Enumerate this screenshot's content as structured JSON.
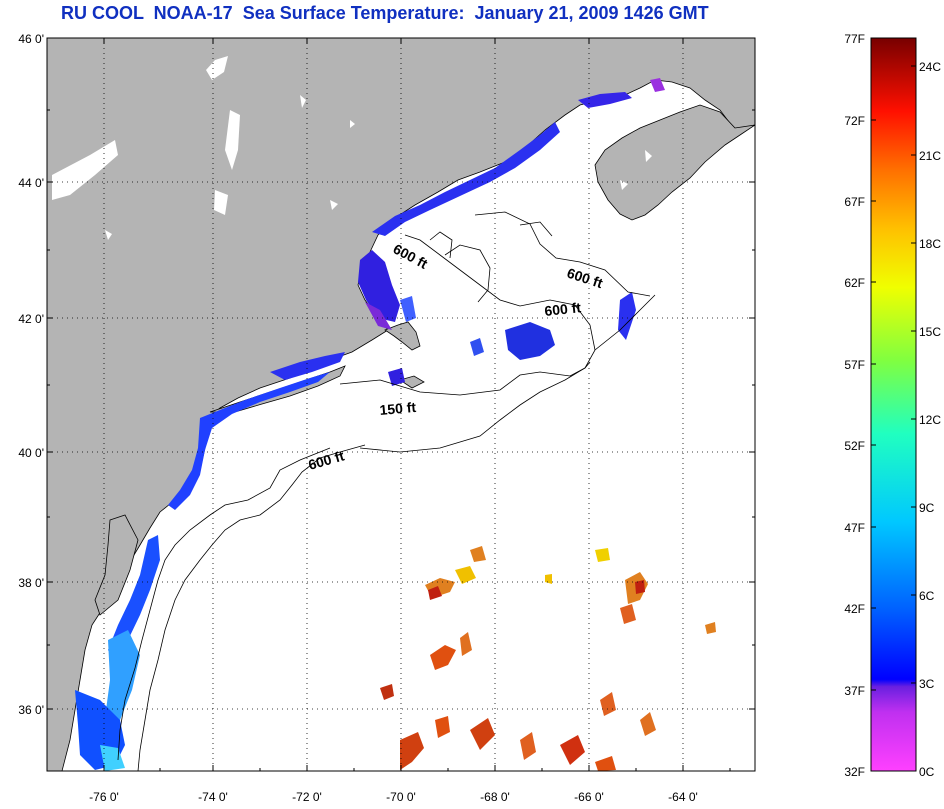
{
  "title": "RU COOL  NOAA-17  Sea Surface Temperature:  January 21, 2009 1426 GMT",
  "map": {
    "lat_ticks": [
      "46 0'",
      "44 0'",
      "42 0'",
      "40 0'",
      "38 0'",
      "36 0'"
    ],
    "lon_ticks": [
      "-76 0'",
      "-74 0'",
      "-72 0'",
      "-70 0'",
      "-68 0'",
      "-66 0'",
      "-64 0'"
    ],
    "isobath_labels": [
      "600 ft",
      "600 ft",
      "600 ft",
      "150 ft",
      "600 ft"
    ],
    "colors": {
      "land": "#b4b4b4",
      "ocean": "#ffffff",
      "coast": "#000000"
    }
  },
  "colorbar": {
    "f_labels": [
      "77F",
      "72F",
      "67F",
      "62F",
      "57F",
      "52F",
      "47F",
      "42F",
      "37F",
      "32F"
    ],
    "c_labels": [
      "24C",
      "21C",
      "18C",
      "15C",
      "12C",
      "9C",
      "6C",
      "3C",
      "0C"
    ],
    "gradient": [
      "#ff40ff",
      "#9a30e0",
      "#0000ff",
      "#0070ff",
      "#00e0ff",
      "#30ff80",
      "#c0ff00",
      "#ffe000",
      "#ff9000",
      "#ff2000",
      "#b00000",
      "#7a0000"
    ]
  }
}
